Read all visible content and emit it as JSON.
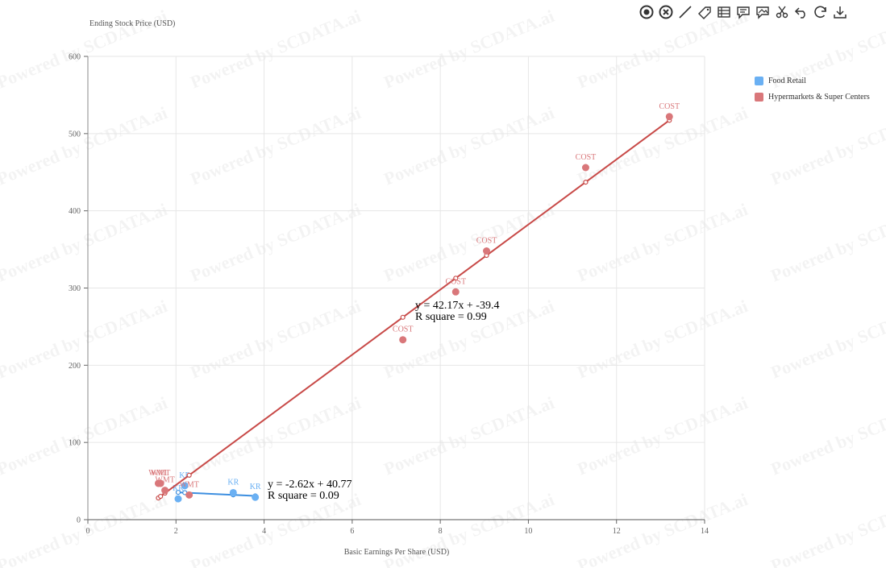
{
  "toolbar": [
    {
      "name": "focus-icon",
      "glyph": "focus"
    },
    {
      "name": "clear-icon",
      "glyph": "clear"
    },
    {
      "name": "line-draw-icon",
      "glyph": "line"
    },
    {
      "name": "tag-icon",
      "glyph": "tag"
    },
    {
      "name": "table-icon",
      "glyph": "table"
    },
    {
      "name": "comment-icon",
      "glyph": "comment"
    },
    {
      "name": "image-comment-icon",
      "glyph": "imgcomment"
    },
    {
      "name": "scissors-icon",
      "glyph": "scissors"
    },
    {
      "name": "undo-icon",
      "glyph": "undo"
    },
    {
      "name": "refresh-icon",
      "glyph": "refresh"
    },
    {
      "name": "download-icon",
      "glyph": "download"
    }
  ],
  "watermark": "Powered by SCDATA.ai",
  "legend": [
    {
      "label": "Food Retail",
      "color": "#6ab0f3"
    },
    {
      "label": "Hypermarkets & Super Centers",
      "color": "#d9777a"
    }
  ],
  "chart_data": {
    "type": "scatter",
    "xlabel": "Basic Earnings Per Share (USD)",
    "ylabel": "Ending Stock Price (USD)",
    "xlim": [
      0,
      14
    ],
    "ylim": [
      0,
      600
    ],
    "x_ticks": [
      "0",
      "2",
      "4",
      "6",
      "8",
      "10",
      "12",
      "14"
    ],
    "y_ticks": [
      "0",
      "100",
      "200",
      "300",
      "400",
      "500",
      "600"
    ],
    "grid": true,
    "legend_position": "top-right",
    "series": [
      {
        "name": "Food Retail",
        "color": "#6ab0f3",
        "line_color": "#3d8fe0",
        "points": [
          {
            "x": 2.05,
            "y": 27,
            "label": "KR"
          },
          {
            "x": 2.2,
            "y": 44,
            "label": "KR"
          },
          {
            "x": 3.3,
            "y": 35,
            "label": "KR"
          },
          {
            "x": 3.8,
            "y": 29,
            "label": "KR"
          }
        ],
        "trend": {
          "x": [
            2.05,
            2.2,
            3.3,
            3.8
          ],
          "y": [
            35.4,
            35.0,
            32.1,
            30.8
          ]
        },
        "equation": "y = -2.62x + 40.77",
        "r_square": "R square = 0.09"
      },
      {
        "name": "Hypermarkets & Super Centers",
        "color": "#d9777a",
        "line_color": "#c84a48",
        "points": [
          {
            "x": 1.6,
            "y": 47,
            "label": "WMT"
          },
          {
            "x": 1.65,
            "y": 47,
            "label": "WMT"
          },
          {
            "x": 1.75,
            "y": 38,
            "label": "WMT"
          },
          {
            "x": 2.3,
            "y": 32,
            "label": "WMT"
          },
          {
            "x": 7.15,
            "y": 233,
            "label": "COST"
          },
          {
            "x": 8.35,
            "y": 295,
            "label": "COST"
          },
          {
            "x": 9.05,
            "y": 348,
            "label": "COST"
          },
          {
            "x": 11.3,
            "y": 456,
            "label": "COST"
          },
          {
            "x": 13.2,
            "y": 522,
            "label": "COST"
          }
        ],
        "trend": {
          "x": [
            1.6,
            1.65,
            1.75,
            2.3,
            7.15,
            8.35,
            9.05,
            11.3,
            13.2
          ],
          "y": [
            28.1,
            30.2,
            34.4,
            57.6,
            262.1,
            312.7,
            342.2,
            437.1,
            517.2
          ]
        },
        "equation": "y = 42.17x + -39.4",
        "r_square": "R square = 0.99"
      }
    ]
  }
}
